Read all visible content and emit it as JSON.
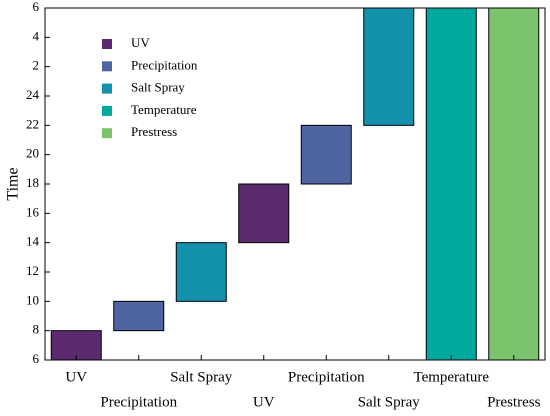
{
  "chart_data": {
    "type": "floating-bar",
    "ylabel": "Time",
    "categories": [
      "UV",
      "Precipitation",
      "Salt Spray",
      "UV",
      "Precipitation",
      "Salt Spray",
      "Temperature",
      "Prestress"
    ],
    "starts": [
      6,
      8,
      10,
      14,
      18,
      22,
      6,
      6
    ],
    "ends": [
      8,
      10,
      14,
      18,
      22,
      30,
      30,
      30
    ],
    "series": [
      {
        "name": "UV",
        "color": "#5c2a6e"
      },
      {
        "name": "Precipitation",
        "color": "#4f65a3"
      },
      {
        "name": "Salt Spray",
        "color": "#1390ab"
      },
      {
        "name": "Temperature",
        "color": "#00a99d"
      },
      {
        "name": "Prestress",
        "color": "#7cc36e"
      }
    ],
    "ylim": [
      6,
      30
    ],
    "yticks": [
      6,
      8,
      10,
      12,
      14,
      16,
      18,
      20,
      22,
      24,
      {
        "value": 26,
        "label": "2"
      },
      {
        "value": 28,
        "label": "4"
      },
      {
        "value": 30,
        "label": "6"
      }
    ]
  }
}
